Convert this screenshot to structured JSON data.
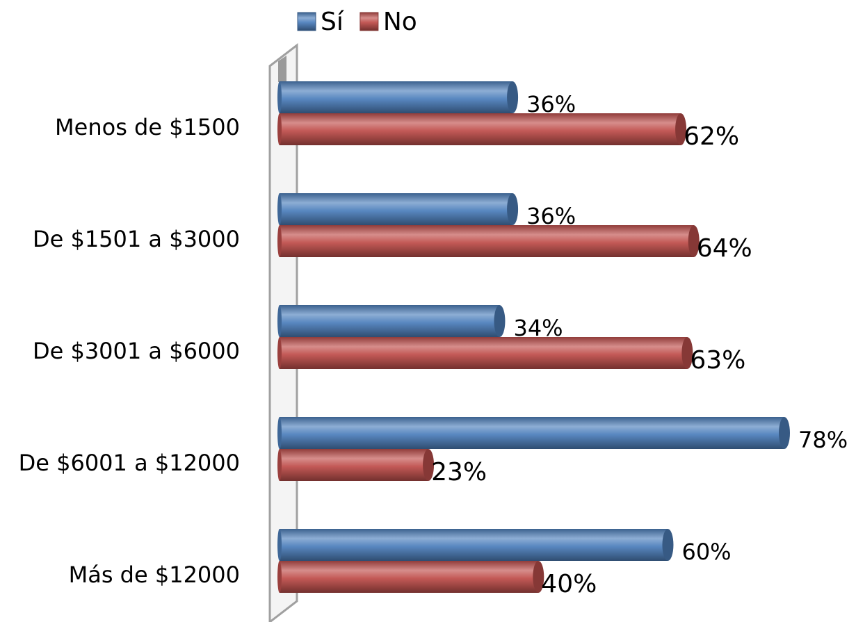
{
  "chart_data": {
    "type": "bar",
    "orientation": "horizontal",
    "categories": [
      "Menos de $1500",
      "De $1501 a $3000",
      "De $3001 a $6000",
      "De $6001 a $12000",
      "Más de $12000"
    ],
    "series": [
      {
        "name": "Sí",
        "color": "#4f81bd",
        "values": [
          36,
          36,
          34,
          78,
          60
        ],
        "value_labels": [
          "36%",
          "36%",
          "34%",
          "78%",
          "60%"
        ]
      },
      {
        "name": "No",
        "color": "#c0504d",
        "values": [
          62,
          64,
          63,
          23,
          40
        ],
        "value_labels": [
          "62%",
          "64%",
          "63%",
          "23%",
          "40%"
        ]
      }
    ],
    "legend": "top"
  }
}
